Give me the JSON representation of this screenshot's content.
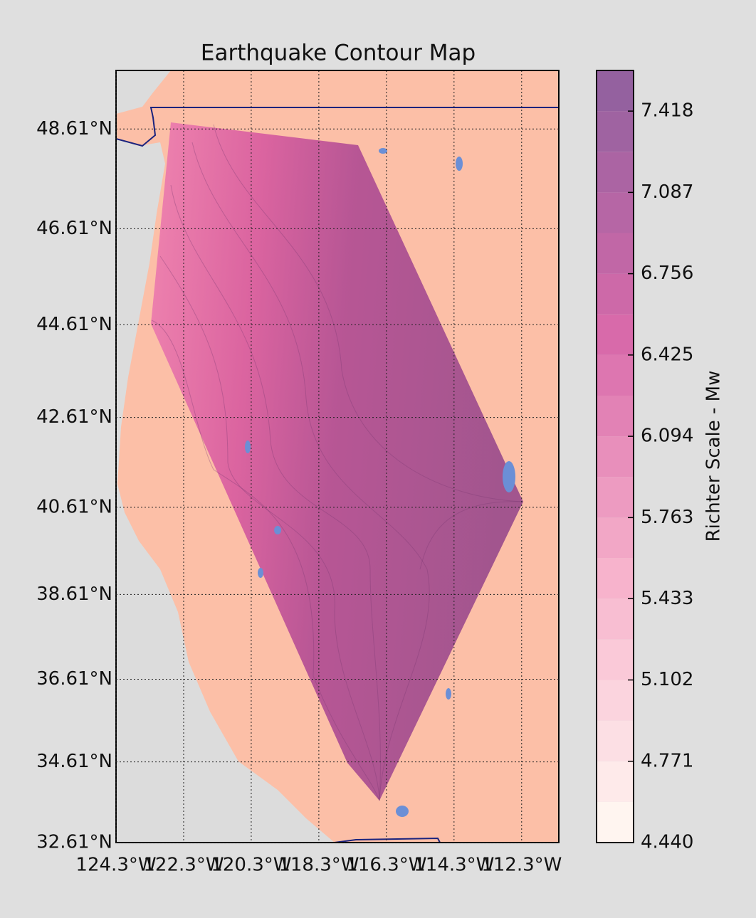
{
  "chart_data": {
    "type": "contour-map",
    "title": "Earthquake Contour Map",
    "projection": "mercator",
    "xlim": [
      -124.3,
      -111.2
    ],
    "ylim": [
      32.61,
      49.75
    ],
    "xticks": [
      {
        "value": -124.3,
        "label": "124.3°W"
      },
      {
        "value": -122.3,
        "label": "122.3°W"
      },
      {
        "value": -120.3,
        "label": "120.3°W"
      },
      {
        "value": -118.3,
        "label": "118.3°W"
      },
      {
        "value": -116.3,
        "label": "116.3°W"
      },
      {
        "value": -114.3,
        "label": "114.3°W"
      },
      {
        "value": -112.3,
        "label": "112.3°W"
      }
    ],
    "yticks": [
      {
        "value": 32.61,
        "label": "32.61°N"
      },
      {
        "value": 34.61,
        "label": "34.61°N"
      },
      {
        "value": 36.61,
        "label": "36.61°N"
      },
      {
        "value": 38.61,
        "label": "38.61°N"
      },
      {
        "value": 40.61,
        "label": "40.61°N"
      },
      {
        "value": 42.61,
        "label": "42.61°N"
      },
      {
        "value": 44.61,
        "label": "44.61°N"
      },
      {
        "value": 46.61,
        "label": "46.61°N"
      },
      {
        "value": 48.61,
        "label": "48.61°N"
      }
    ],
    "grid": true,
    "colorbar": {
      "label": "Richter Scale - Mw",
      "colormap": [
        "#fff5f0",
        "#f7b3cc",
        "#d86aaa",
        "#94619f"
      ],
      "levels": [
        4.44,
        4.6055,
        4.771,
        4.9365,
        5.102,
        5.2675,
        5.433,
        5.5985,
        5.763,
        5.9285,
        6.094,
        6.2595,
        6.425,
        6.5905,
        6.756,
        6.9215,
        7.087,
        7.2525,
        7.418,
        7.5835
      ],
      "ticks": [
        {
          "value": 4.44,
          "label": "4.440"
        },
        {
          "value": 4.771,
          "label": "4.771"
        },
        {
          "value": 5.102,
          "label": "5.102"
        },
        {
          "value": 5.433,
          "label": "5.433"
        },
        {
          "value": 5.763,
          "label": "5.763"
        },
        {
          "value": 6.094,
          "label": "6.094"
        },
        {
          "value": 6.425,
          "label": "6.425"
        },
        {
          "value": 6.756,
          "label": "6.756"
        },
        {
          "value": 7.087,
          "label": "7.087"
        },
        {
          "value": 7.418,
          "label": "7.418"
        }
      ]
    }
  }
}
